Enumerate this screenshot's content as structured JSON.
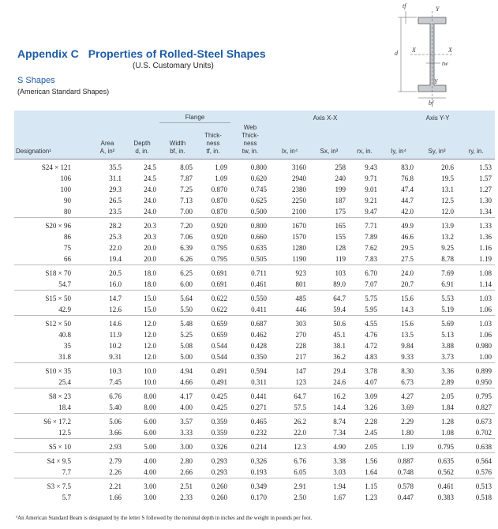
{
  "header": {
    "appendix": "Appendix C",
    "title": "Properties of Rolled-Steel Shapes",
    "subtitle": "(U.S. Customary Units)",
    "section": "S Shapes",
    "section_subtitle": "(American Standard Shapes)"
  },
  "diagram": {
    "labels": {
      "tf": "tf",
      "y_top": "Y",
      "d": "d",
      "x_left": "X",
      "x_right": "X",
      "tw": "tw",
      "y_bottom": "Y",
      "bf": "bf"
    }
  },
  "table": {
    "group_labels": {
      "flange": "Flange",
      "axis_x": "Axis X-X",
      "axis_y": "Axis Y-Y"
    },
    "columns": [
      [
        "Designation¹"
      ],
      [
        "Area",
        "A, in²"
      ],
      [
        "Depth",
        "d, in."
      ],
      [
        "Width",
        "bf, in."
      ],
      [
        "Thick-",
        "ness",
        "tf, in."
      ],
      [
        "Web",
        "Thick-",
        "ness",
        "tw, in."
      ],
      [
        "Ix, in⁴"
      ],
      [
        "Sx, in³"
      ],
      [
        "rx, in."
      ],
      [
        "Iy, in⁴"
      ],
      [
        "Sy, in³"
      ],
      [
        "ry, in."
      ]
    ],
    "groups": [
      [
        [
          "S24 × 121",
          "35.5",
          "24.5",
          "8.05",
          "1.09",
          "0.800",
          "3160",
          "258",
          "9.43",
          "83.0",
          "20.6",
          "1.53"
        ],
        [
          "106",
          "31.1",
          "24.5",
          "7.87",
          "1.09",
          "0.620",
          "2940",
          "240",
          "9.71",
          "76.8",
          "19.5",
          "1.57"
        ],
        [
          "100",
          "29.3",
          "24.0",
          "7.25",
          "0.870",
          "0.745",
          "2380",
          "199",
          "9.01",
          "47.4",
          "13.1",
          "1.27"
        ],
        [
          "90",
          "26.5",
          "24.0",
          "7.13",
          "0.870",
          "0.625",
          "2250",
          "187",
          "9.21",
          "44.7",
          "12.5",
          "1.30"
        ],
        [
          "80",
          "23.5",
          "24.0",
          "7.00",
          "0.870",
          "0.500",
          "2100",
          "175",
          "9.47",
          "42.0",
          "12.0",
          "1.34"
        ]
      ],
      [
        [
          "S20 × 96",
          "28.2",
          "20.3",
          "7.20",
          "0.920",
          "0.800",
          "1670",
          "165",
          "7.71",
          "49.9",
          "13.9",
          "1.33"
        ],
        [
          "86",
          "25.3",
          "20.3",
          "7.06",
          "0.920",
          "0.660",
          "1570",
          "155",
          "7.89",
          "46.6",
          "13.2",
          "1.36"
        ],
        [
          "75",
          "22.0",
          "20.0",
          "6.39",
          "0.795",
          "0.635",
          "1280",
          "128",
          "7.62",
          "29.5",
          "9.25",
          "1.16"
        ],
        [
          "66",
          "19.4",
          "20.0",
          "6.26",
          "0.795",
          "0.505",
          "1190",
          "119",
          "7.83",
          "27.5",
          "8.78",
          "1.19"
        ]
      ],
      [
        [
          "S18 × 70",
          "20.5",
          "18.0",
          "6.25",
          "0.691",
          "0.711",
          "923",
          "103",
          "6.70",
          "24.0",
          "7.69",
          "1.08"
        ],
        [
          "54.7",
          "16.0",
          "18.0",
          "6.00",
          "0.691",
          "0.461",
          "801",
          "89.0",
          "7.07",
          "20.7",
          "6.91",
          "1.14"
        ]
      ],
      [
        [
          "S15 × 50",
          "14.7",
          "15.0",
          "5.64",
          "0.622",
          "0.550",
          "485",
          "64.7",
          "5.75",
          "15.6",
          "5.53",
          "1.03"
        ],
        [
          "42.9",
          "12.6",
          "15.0",
          "5.50",
          "0.622",
          "0.411",
          "446",
          "59.4",
          "5.95",
          "14.3",
          "5.19",
          "1.06"
        ]
      ],
      [
        [
          "S12 × 50",
          "14.6",
          "12.0",
          "5.48",
          "0.659",
          "0.687",
          "303",
          "50.6",
          "4.55",
          "15.6",
          "5.69",
          "1.03"
        ],
        [
          "40.8",
          "11.9",
          "12.0",
          "5.25",
          "0.659",
          "0.462",
          "270",
          "45.1",
          "4.76",
          "13.5",
          "5.13",
          "1.06"
        ],
        [
          "35",
          "10.2",
          "12.0",
          "5.08",
          "0.544",
          "0.428",
          "228",
          "38.1",
          "4.72",
          "9.84",
          "3.88",
          "0.980"
        ],
        [
          "31.8",
          "9.31",
          "12.0",
          "5.00",
          "0.544",
          "0.350",
          "217",
          "36.2",
          "4.83",
          "9.33",
          "3.73",
          "1.00"
        ]
      ],
      [
        [
          "S10 × 35",
          "10.3",
          "10.0",
          "4.94",
          "0.491",
          "0.594",
          "147",
          "29.4",
          "3.78",
          "8.30",
          "3.36",
          "0.899"
        ],
        [
          "25.4",
          "7.45",
          "10.0",
          "4.66",
          "0.491",
          "0.311",
          "123",
          "24.6",
          "4.07",
          "6.73",
          "2.89",
          "0.950"
        ]
      ],
      [
        [
          "S8 × 23",
          "6.76",
          "8.00",
          "4.17",
          "0.425",
          "0.441",
          "64.7",
          "16.2",
          "3.09",
          "4.27",
          "2.05",
          "0.795"
        ],
        [
          "18.4",
          "5.40",
          "8.00",
          "4.00",
          "0.425",
          "0.271",
          "57.5",
          "14.4",
          "3.26",
          "3.69",
          "1.84",
          "0.827"
        ]
      ],
      [
        [
          "S6 × 17.2",
          "5.06",
          "6.00",
          "3.57",
          "0.359",
          "0.465",
          "26.2",
          "8.74",
          "2.28",
          "2.29",
          "1.28",
          "0.673"
        ],
        [
          "12.5",
          "3.66",
          "6.00",
          "3.33",
          "0.359",
          "0.232",
          "22.0",
          "7.34",
          "2.45",
          "1.80",
          "1.08",
          "0.702"
        ]
      ],
      [
        [
          "S5 × 10",
          "2.93",
          "5.00",
          "3.00",
          "0.326",
          "0.214",
          "12.3",
          "4.90",
          "2.05",
          "1.19",
          "0.795",
          "0.638"
        ]
      ],
      [
        [
          "S4 × 9.5",
          "2.79",
          "4.00",
          "2.80",
          "0.293",
          "0.326",
          "6.76",
          "3.38",
          "1.56",
          "0.887",
          "0.635",
          "0.564"
        ],
        [
          "7.7",
          "2.26",
          "4.00",
          "2.66",
          "0.293",
          "0.193",
          "6.05",
          "3.03",
          "1.64",
          "0.748",
          "0.562",
          "0.576"
        ]
      ],
      [
        [
          "S3 × 7.5",
          "2.21",
          "3.00",
          "2.51",
          "0.260",
          "0.349",
          "2.91",
          "1.94",
          "1.15",
          "0.578",
          "0.461",
          "0.513"
        ],
        [
          "5.7",
          "1.66",
          "3.00",
          "2.33",
          "0.260",
          "0.170",
          "2.50",
          "1.67",
          "1.23",
          "0.447",
          "0.383",
          "0.518"
        ]
      ]
    ]
  },
  "footnote": "¹An American Standard Beam is designated by the letter S followed by the nominal depth in inches and the weight in pounds per foot."
}
